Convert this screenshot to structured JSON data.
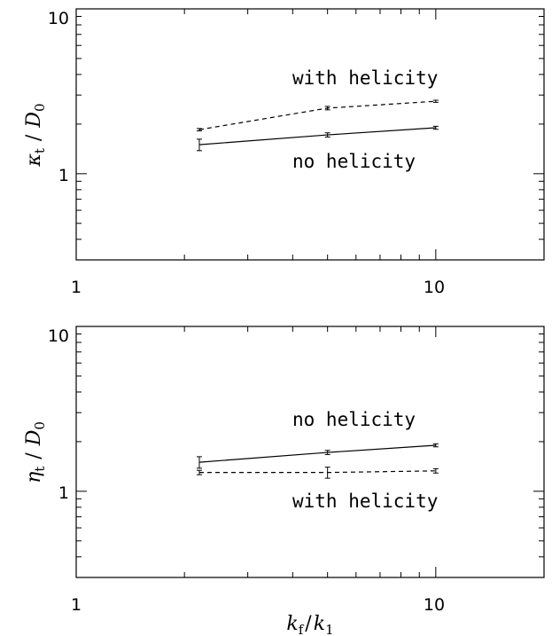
{
  "chart_data": [
    {
      "type": "line",
      "xscale": "log",
      "yscale": "log",
      "xlim": [
        1,
        20
      ],
      "ylim": [
        0.3,
        10
      ],
      "xtick_labels": [
        "1",
        "10"
      ],
      "ytick_labels": [
        "1",
        "10"
      ],
      "ylabel": {
        "sym": "κ",
        "sub": "t",
        "div": "/",
        "D": "D",
        "sub0": "0"
      },
      "xlabel": null,
      "series": [
        {
          "label": "with helicity",
          "style": "dashed",
          "points": [
            {
              "x": 2.2,
              "y": 1.85,
              "err": 0.03
            },
            {
              "x": 5.0,
              "y": 2.5,
              "err": 0.06
            },
            {
              "x": 10.0,
              "y": 2.75,
              "err": 0.04
            }
          ]
        },
        {
          "label": "no helicity",
          "style": "solid",
          "points": [
            {
              "x": 2.2,
              "y": 1.5,
              "err": 0.12
            },
            {
              "x": 5.0,
              "y": 1.72,
              "err": 0.05
            },
            {
              "x": 10.0,
              "y": 1.9,
              "err": 0.04
            }
          ]
        }
      ],
      "annotations": [
        "with helicity",
        "no helicity"
      ]
    },
    {
      "type": "line",
      "xscale": "log",
      "yscale": "log",
      "xlim": [
        1,
        20
      ],
      "ylim": [
        0.3,
        10
      ],
      "xtick_labels": [
        "1",
        "10"
      ],
      "ytick_labels": [
        "1",
        "10"
      ],
      "ylabel": {
        "sym": "η",
        "sub": "t",
        "div": "/",
        "D": "D",
        "sub0": "0"
      },
      "xlabel": {
        "k": "k",
        "subf": "f",
        "div": "/",
        "k1": "k",
        "sub1": "1"
      },
      "series": [
        {
          "label": "no helicity",
          "style": "solid",
          "points": [
            {
              "x": 2.2,
              "y": 1.5,
              "err": 0.12
            },
            {
              "x": 5.0,
              "y": 1.72,
              "err": 0.05
            },
            {
              "x": 10.0,
              "y": 1.9,
              "err": 0.04
            }
          ]
        },
        {
          "label": "with helicity",
          "style": "dashed",
          "points": [
            {
              "x": 2.2,
              "y": 1.3,
              "err": 0.04
            },
            {
              "x": 5.0,
              "y": 1.3,
              "err": 0.1
            },
            {
              "x": 10.0,
              "y": 1.33,
              "err": 0.04
            }
          ]
        }
      ],
      "annotations": [
        "no helicity",
        "with helicity"
      ]
    }
  ]
}
